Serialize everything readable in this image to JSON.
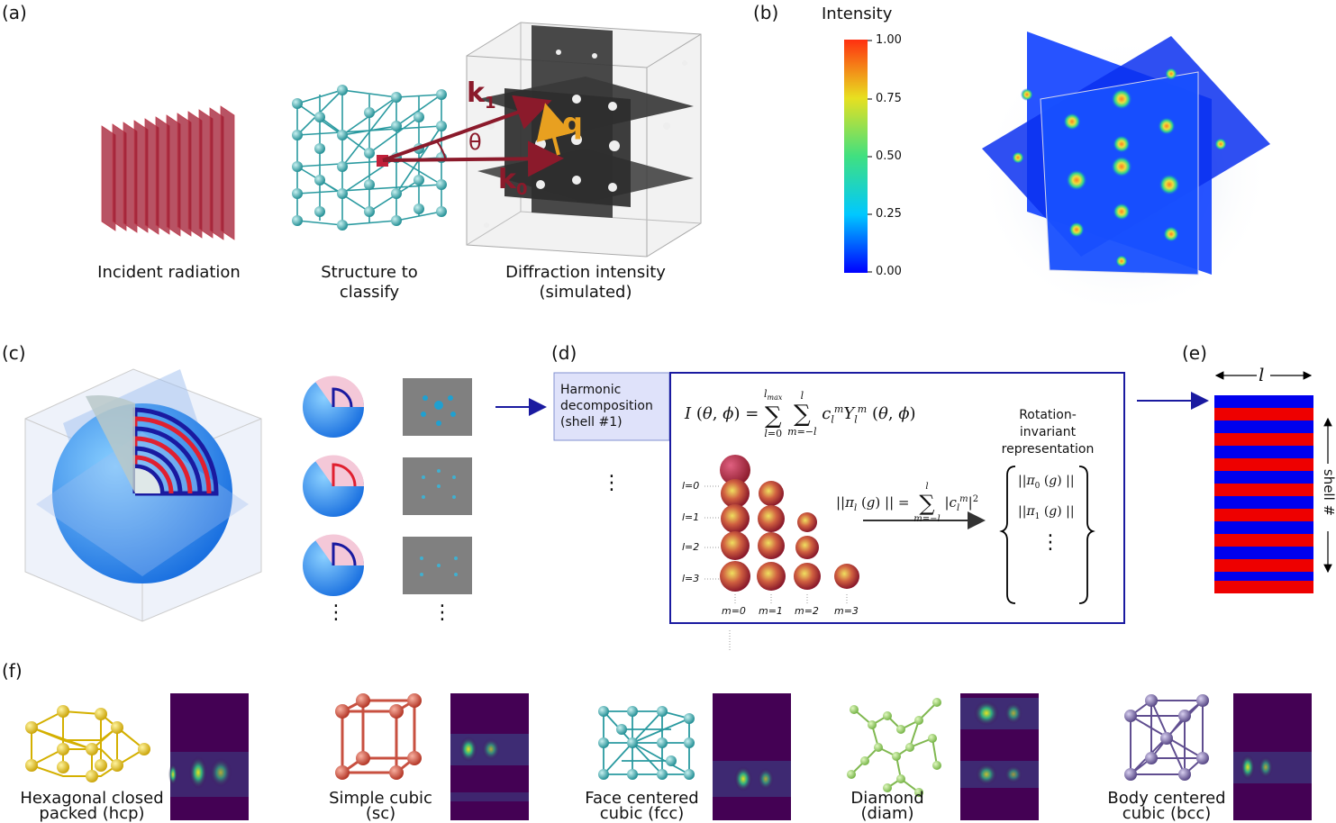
{
  "panel_labels": {
    "a": "(a)",
    "b": "(b)",
    "c": "(c)",
    "d": "(d)",
    "e": "(e)",
    "f": "(f)"
  },
  "panel_a": {
    "incident_caption": "Incident radiation",
    "structure_caption_1": "Structure to",
    "structure_caption_2": "classify",
    "diffraction_caption_1": "Diffraction intensity",
    "diffraction_caption_2": "(simulated)",
    "k1_label": "k",
    "k1_sub": "1",
    "k0_label": "k",
    "k0_sub": "0",
    "q_label": "q",
    "theta_label": "θ"
  },
  "panel_b": {
    "colorbar_title": "Intensity",
    "ticks": [
      "1.00",
      "0.75",
      "0.50",
      "0.25",
      "0.00"
    ]
  },
  "panel_d": {
    "harmonic_label_1": "Harmonic",
    "harmonic_label_2": "decomposition",
    "harmonic_label_3": "(shell #1)",
    "rotation_label_1": "Rotation-",
    "rotation_label_2": "invariant",
    "rotation_label_3": "representation",
    "l_labels": [
      "l=0",
      "l=1",
      "l=2",
      "l=3"
    ],
    "m_labels": [
      "m=0",
      "m=1",
      "m=2",
      "m=3"
    ],
    "vdots": "⋮"
  },
  "panel_e": {
    "l_axis": "l",
    "shell_axis": "shell #"
  },
  "panel_f": {
    "hcp_1": "Hexagonal closed",
    "hcp_2": "packed (hcp)",
    "sc_1": "Simple cubic",
    "sc_2": "(sc)",
    "fcc_1": "Face centered",
    "fcc_2": "cubic (fcc)",
    "diam_1": "Diamond",
    "diam_2": "(diam)",
    "bcc_1": "Body centered",
    "bcc_2": "cubic (bcc)"
  },
  "colors": {
    "crimson": "#8b1a2b",
    "teal": "#2a9aa0",
    "blue": "#0000ee",
    "red": "#ee0000",
    "navy": "#1a1aa0",
    "orange": "#e8a020",
    "viridis_dark": "#440154"
  }
}
